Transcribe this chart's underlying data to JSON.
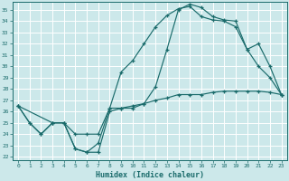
{
  "title": "",
  "xlabel": "Humidex (Indice chaleur)",
  "bg_color": "#cce8ea",
  "line_color": "#1a6b6b",
  "grid_color": "#ffffff",
  "xlim": [
    -0.5,
    23.5
  ],
  "ylim": [
    21.7,
    35.7
  ],
  "yticks": [
    22,
    23,
    24,
    25,
    26,
    27,
    28,
    29,
    30,
    31,
    32,
    33,
    34,
    35
  ],
  "xticks": [
    0,
    1,
    2,
    3,
    4,
    5,
    6,
    7,
    8,
    9,
    10,
    11,
    12,
    13,
    14,
    15,
    16,
    17,
    18,
    19,
    20,
    21,
    22,
    23
  ],
  "line1_x": [
    0,
    1,
    2,
    3,
    4,
    5,
    6,
    7,
    8,
    9,
    10,
    11,
    12,
    13,
    14,
    15,
    16,
    17,
    18,
    19,
    20,
    21,
    22,
    23
  ],
  "line1_y": [
    26.5,
    25.0,
    24.0,
    25.0,
    25.0,
    22.7,
    22.4,
    22.4,
    26.0,
    26.3,
    26.5,
    26.7,
    27.0,
    27.2,
    27.5,
    27.5,
    27.5,
    27.7,
    27.8,
    27.8,
    27.8,
    27.8,
    27.7,
    27.5
  ],
  "line2_x": [
    0,
    1,
    2,
    3,
    4,
    5,
    6,
    7,
    8,
    9,
    10,
    11,
    12,
    13,
    14,
    15,
    16,
    17,
    18,
    19,
    20,
    21,
    22,
    23
  ],
  "line2_y": [
    26.5,
    25.0,
    24.0,
    25.0,
    25.0,
    22.7,
    22.4,
    23.2,
    26.3,
    29.5,
    30.5,
    32.0,
    33.5,
    34.5,
    35.1,
    35.3,
    34.4,
    34.1,
    34.0,
    33.5,
    31.5,
    30.0,
    29.0,
    27.5
  ],
  "line3_x": [
    0,
    3,
    4,
    5,
    6,
    7,
    8,
    9,
    10,
    11,
    12,
    13,
    14,
    15,
    16,
    17,
    18,
    19,
    20,
    21,
    22,
    23
  ],
  "line3_y": [
    26.5,
    25.0,
    25.0,
    24.0,
    24.0,
    24.0,
    26.3,
    26.3,
    26.3,
    26.7,
    28.2,
    31.5,
    35.0,
    35.5,
    35.2,
    34.4,
    34.1,
    34.0,
    31.5,
    32.0,
    30.0,
    27.5
  ]
}
